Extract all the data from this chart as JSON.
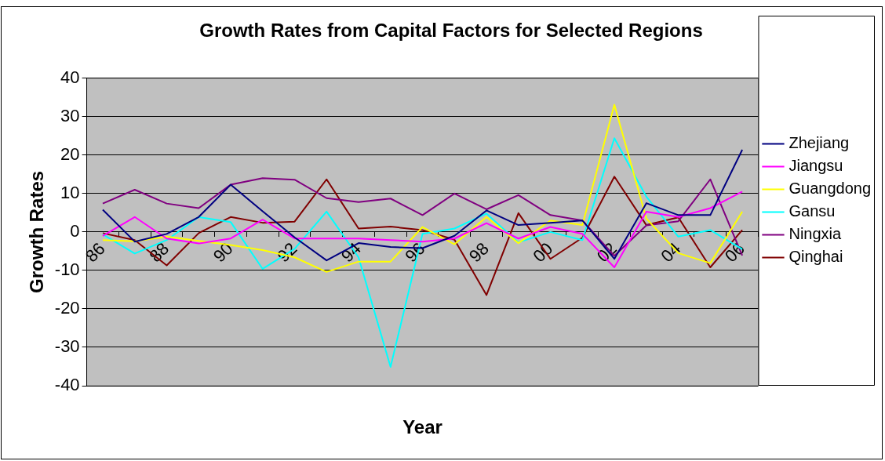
{
  "chart_data": {
    "type": "line",
    "title": "Growth Rates from Capital Factors for Selected Regions",
    "xlabel": "Year",
    "ylabel": "Growth Rates",
    "categories": [
      "86",
      null,
      "88",
      null,
      "90",
      null,
      "92",
      null,
      "94",
      null,
      "96",
      null,
      "98",
      null,
      "00",
      null,
      "02",
      null,
      "04",
      null,
      "06"
    ],
    "series": [
      {
        "name": "Zhejiang",
        "color": "#000080",
        "values": [
          5.8,
          -2.5,
          -0.5,
          3.9,
          12.3,
          5.4,
          -1.4,
          -7.4,
          -2.9,
          -3.9,
          -4.2,
          -1,
          5.6,
          1.8,
          2.4,
          3.0,
          -7.0,
          7.5,
          4.4,
          4.4,
          21.4
        ]
      },
      {
        "name": "Jiangsu",
        "color": "#ff00ff",
        "values": [
          -1,
          3.9,
          -1.7,
          -3,
          -1.7,
          3.2,
          -1.7,
          -1.7,
          -1.7,
          -2.1,
          -2.5,
          -1.7,
          2.3,
          -1.7,
          1.3,
          -0.5,
          -9.2,
          5.3,
          3.9,
          6.2,
          10.5
        ]
      },
      {
        "name": "Guangdong",
        "color": "#ffff00",
        "values": [
          -2.1,
          -2.4,
          -1.2,
          -2.3,
          -3.4,
          -4.7,
          -6.6,
          -10.4,
          -7.7,
          -7.7,
          1.3,
          -3.2,
          3.9,
          -2.9,
          3.0,
          1.8,
          33.1,
          3.5,
          -5.5,
          -8.1,
          5.3
        ]
      },
      {
        "name": "Gansu",
        "color": "#00ffff",
        "values": [
          -0.6,
          -5.6,
          -2.1,
          3.9,
          2.6,
          -9.6,
          -4.4,
          5.3,
          -6.6,
          -35.1,
          -0.5,
          0.9,
          4.8,
          -2.7,
          0,
          -2.1,
          24.4,
          9.2,
          -1.2,
          0.5,
          -4.5
        ]
      },
      {
        "name": "Ningxia",
        "color": "#800080",
        "values": [
          7.4,
          11,
          7.4,
          6.2,
          12.3,
          14,
          13.6,
          8.8,
          7.8,
          8.7,
          4.4,
          10,
          5.9,
          9.6,
          4.4,
          3.0,
          -6.2,
          1.7,
          2.8,
          13.7,
          -6.1
        ]
      },
      {
        "name": "Qinghai",
        "color": "#800000",
        "values": [
          -0.3,
          -2.1,
          -8.7,
          -0.3,
          3.9,
          2.4,
          2.7,
          13.7,
          0.9,
          1.4,
          0.5,
          -2.0,
          -16.4,
          4.9,
          -7.0,
          -1.5,
          14.4,
          1.8,
          3.8,
          -9.2,
          0.5
        ]
      }
    ],
    "ylim": [
      -40,
      40
    ],
    "yticks": [
      -40,
      -30,
      -20,
      -10,
      0,
      10,
      20,
      30,
      40
    ],
    "grid": "y",
    "legend": "right",
    "marker": "none",
    "line_style": "solid"
  }
}
